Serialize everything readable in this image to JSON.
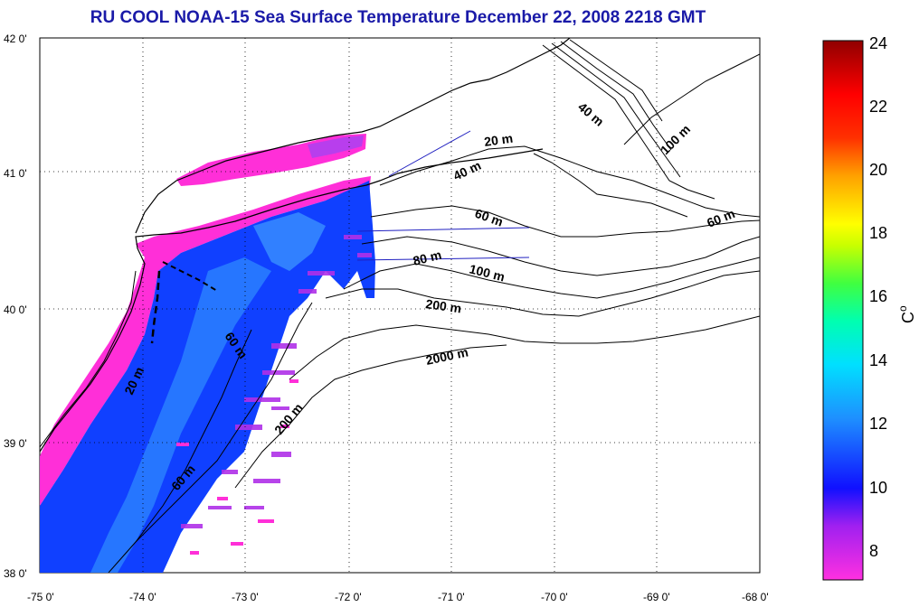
{
  "title": "RU COOL  NOAA-15 Sea Surface Temperature December 22, 2008 2218 GMT",
  "map": {
    "lat_range": [
      38,
      42
    ],
    "lon_range": [
      -75,
      -68
    ],
    "lat_ticks": [
      "42 0'",
      "41 0'",
      "40 0'",
      "39 0'",
      "38 0'"
    ],
    "lon_ticks": [
      "-75 0'",
      "-74 0'",
      "-73 0'",
      "-72 0'",
      "-71 0'",
      "-70 0'",
      "-69 0'",
      "-68 0'"
    ],
    "grid": "dotted",
    "isobath_labels": [
      "20 m",
      "40 m",
      "40 m",
      "60 m",
      "80 m",
      "100 m",
      "200 m",
      "2000 m",
      "100 m",
      "60 m",
      "20 m",
      "60 m",
      "200 m",
      "60 m"
    ]
  },
  "colorbar": {
    "min": 7,
    "max": 24,
    "ticks": [
      "24",
      "22",
      "20",
      "18",
      "16",
      "14",
      "12",
      "10",
      "8"
    ],
    "unit_label": "C",
    "unit_superscript": "o",
    "colors": [
      "#ff30e0",
      "#a020f0",
      "#1010ff",
      "#1e90ff",
      "#00e0ff",
      "#00ffb0",
      "#40ff40",
      "#c8ff00",
      "#ffff00",
      "#ffa000",
      "#ff3000",
      "#ff0000",
      "#900000"
    ]
  }
}
